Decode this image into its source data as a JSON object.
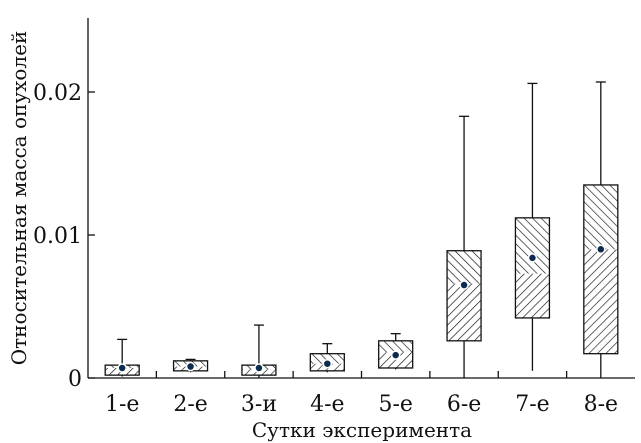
{
  "chart_data": {
    "type": "boxplot",
    "title": "",
    "xlabel": "Сутки эксперимента",
    "ylabel": "Относительная масса опухолей",
    "ylim": [
      0,
      0.025
    ],
    "y_ticks": [
      {
        "value": 0,
        "label": "0"
      },
      {
        "value": 0.01,
        "label": "0.01"
      },
      {
        "value": 0.02,
        "label": "0.02"
      }
    ],
    "categories": [
      "1-е",
      "2-е",
      "3-и",
      "4-е",
      "5-е",
      "6-е",
      "7-е",
      "8-е"
    ],
    "boxes": [
      {
        "min": 0.0001,
        "q1": 0.0002,
        "median": 0.0007,
        "q3": 0.0009,
        "max": 0.0027,
        "mean": 0.0007
      },
      {
        "min": 0.0004,
        "q1": 0.0005,
        "median": 0.0008,
        "q3": 0.0012,
        "max": 0.0013,
        "mean": 0.0008
      },
      {
        "min": 0.0,
        "q1": 0.0002,
        "median": 0.0006,
        "q3": 0.0009,
        "max": 0.0037,
        "mean": 0.0007
      },
      {
        "min": 0.0004,
        "q1": 0.0005,
        "median": 0.001,
        "q3": 0.0017,
        "max": 0.0024,
        "mean": 0.001
      },
      {
        "min": 0.0006,
        "q1": 0.0007,
        "median": 0.0018,
        "q3": 0.0026,
        "max": 0.0031,
        "mean": 0.0016
      },
      {
        "min": 0.0,
        "q1": 0.0026,
        "median": 0.0066,
        "q3": 0.0089,
        "max": 0.0183,
        "mean": 0.0065
      },
      {
        "min": 0.0005,
        "q1": 0.0042,
        "median": 0.0073,
        "q3": 0.0112,
        "max": 0.0206,
        "mean": 0.0084
      },
      {
        "min": 0.0,
        "q1": 0.0017,
        "median": 0.009,
        "q3": 0.0135,
        "max": 0.0207,
        "mean": 0.009
      }
    ]
  }
}
